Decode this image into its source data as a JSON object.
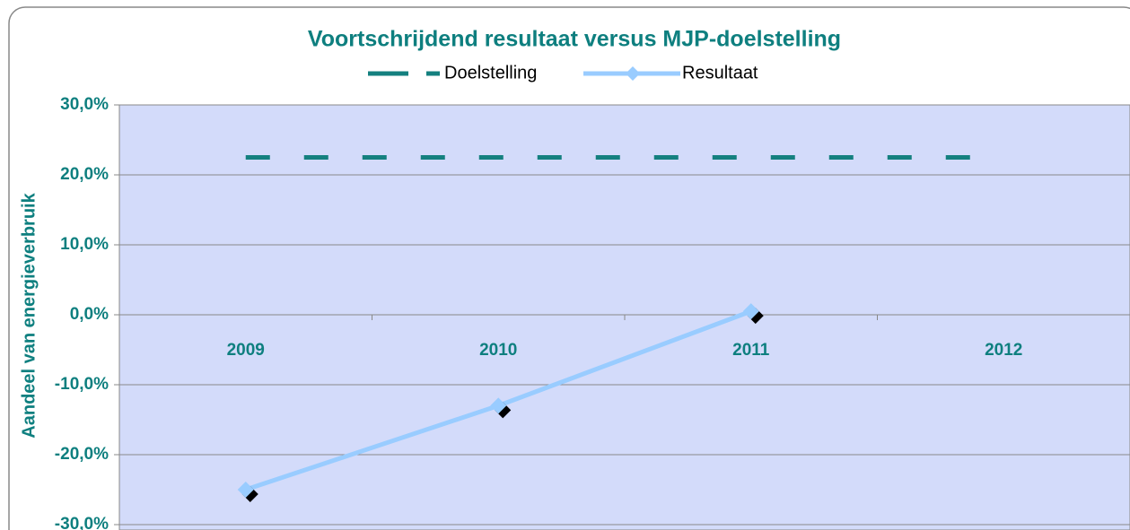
{
  "chart_data": {
    "type": "line",
    "title": "Voortschrijdend resultaat versus MJP-doelstelling",
    "y_label": "Aandeel van energieverbruik",
    "categories": [
      "2009",
      "2010",
      "2011",
      "2012"
    ],
    "series": [
      {
        "name": "Doelstelling",
        "color": "#14807f",
        "dashed": true,
        "values": [
          22.5,
          22.5,
          22.5,
          22.5
        ]
      },
      {
        "name": "Resultaat",
        "color": "#99ccff",
        "marker": "diamond",
        "values": [
          -25,
          -13,
          0.5,
          null
        ]
      }
    ],
    "ylim": [
      -30,
      30
    ],
    "yticks": [
      {
        "value": -30,
        "label": "-30,0%"
      },
      {
        "value": -20,
        "label": "-20,0%"
      },
      {
        "value": -10,
        "label": "-10,0%"
      },
      {
        "value": 0,
        "label": "0,0%"
      },
      {
        "value": 10,
        "label": "10,0%"
      },
      {
        "value": 20,
        "label": "20,0%"
      },
      {
        "value": 30,
        "label": "30,0%"
      }
    ],
    "grid": true,
    "legend": "top"
  }
}
